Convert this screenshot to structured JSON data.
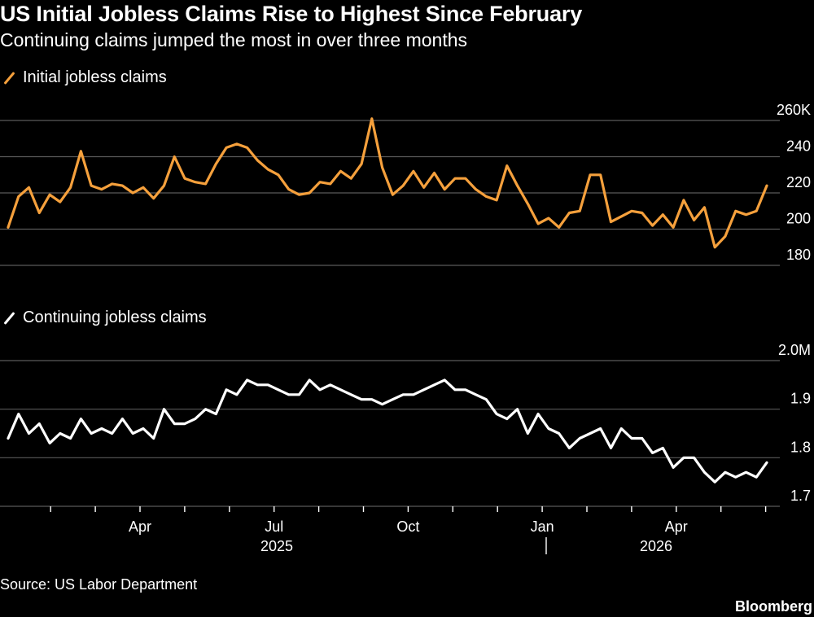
{
  "header": {
    "title": "US Initial Jobless Claims Rise to Highest Since February",
    "subtitle": "Continuing claims jumped the most in over three months"
  },
  "footer": {
    "source": "Source: US Labor Department",
    "brand": "Bloomberg"
  },
  "colors": {
    "background": "#000000",
    "initial": "#F5A03C",
    "continuing": "#FFFFFF",
    "grid": "#5a5a5a"
  },
  "chart_data": [
    {
      "type": "line",
      "title": "",
      "series": [
        {
          "name": "Initial jobless claims",
          "color": "#F5A03C",
          "values": [
            201,
            218,
            223,
            209,
            219,
            215,
            223,
            243,
            224,
            222,
            225,
            224,
            220,
            223,
            217,
            224,
            240,
            228,
            226,
            225,
            236,
            245,
            247,
            245,
            238,
            233,
            230,
            222,
            219,
            220,
            226,
            225,
            232,
            228,
            236,
            261,
            234,
            219,
            224,
            232,
            223,
            231,
            222,
            228,
            228,
            222,
            218,
            216,
            235,
            224,
            214,
            203,
            206,
            201,
            209,
            210,
            230,
            230,
            204,
            207,
            210,
            209,
            202,
            208,
            201,
            216,
            205,
            212,
            190,
            196,
            210,
            208,
            210,
            224
          ]
        }
      ],
      "yticks": [
        "180",
        "200",
        "220",
        "240",
        "260K"
      ],
      "ylim": [
        180,
        260
      ]
    },
    {
      "type": "line",
      "title": "",
      "series": [
        {
          "name": "Continuing jobless claims",
          "color": "#FFFFFF",
          "values": [
            1.84,
            1.89,
            1.85,
            1.87,
            1.83,
            1.85,
            1.84,
            1.88,
            1.85,
            1.86,
            1.85,
            1.88,
            1.85,
            1.86,
            1.84,
            1.9,
            1.87,
            1.87,
            1.88,
            1.9,
            1.89,
            1.94,
            1.93,
            1.96,
            1.95,
            1.95,
            1.94,
            1.93,
            1.93,
            1.96,
            1.94,
            1.95,
            1.94,
            1.93,
            1.92,
            1.92,
            1.91,
            1.92,
            1.93,
            1.93,
            1.94,
            1.95,
            1.96,
            1.94,
            1.94,
            1.93,
            1.92,
            1.89,
            1.88,
            1.9,
            1.85,
            1.89,
            1.86,
            1.85,
            1.82,
            1.84,
            1.85,
            1.86,
            1.82,
            1.86,
            1.84,
            1.84,
            1.81,
            1.82,
            1.78,
            1.8,
            1.8,
            1.77,
            1.75,
            1.77,
            1.76,
            1.77,
            1.76,
            1.79
          ]
        }
      ],
      "yticks": [
        "1.7",
        "1.8",
        "1.9",
        "2.0M"
      ],
      "ylim": [
        1.7,
        2.0
      ]
    }
  ],
  "xaxis": {
    "month_labels": [
      "Apr",
      "Jul",
      "Oct",
      "Jan",
      "Apr"
    ],
    "year_labels": [
      "2025",
      "2026"
    ]
  }
}
